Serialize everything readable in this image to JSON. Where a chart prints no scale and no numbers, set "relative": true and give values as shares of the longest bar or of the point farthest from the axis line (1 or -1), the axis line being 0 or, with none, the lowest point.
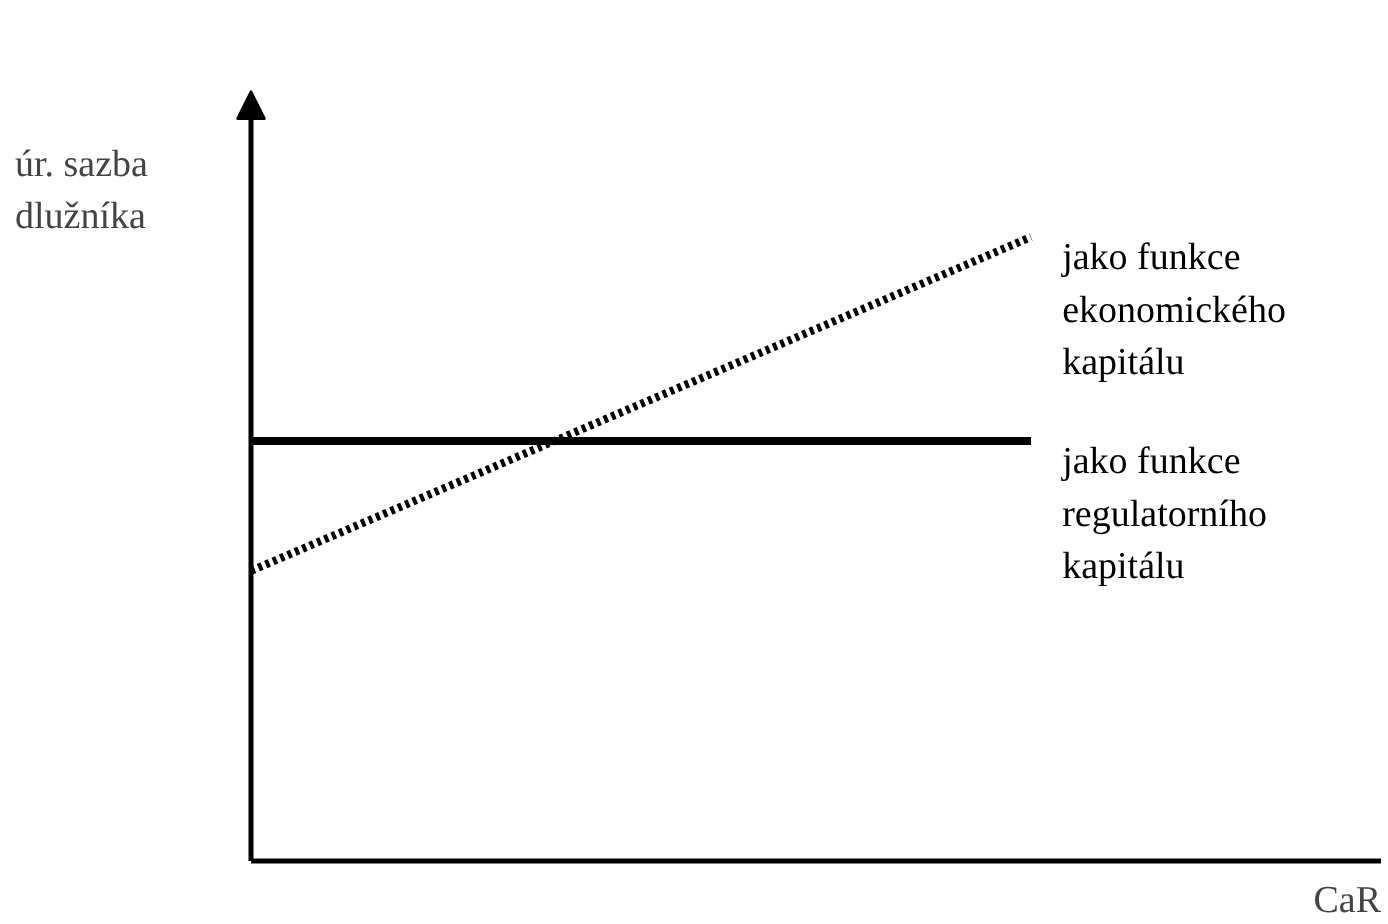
{
  "chart_data": {
    "type": "line",
    "relative": true,
    "xlabel": "CaR",
    "ylabel": "úr. sazba dlužníka",
    "categories": [
      null,
      null
    ],
    "marker": "none",
    "series": [
      {
        "name": "jako funkce ekonomického kapitálu",
        "color": "#000000",
        "values": [
          0.465,
          1
        ],
        "line_style": "dotted"
      },
      {
        "name": "jako funkce regulatorního kapitálu",
        "color": "#000000",
        "values": [
          0.673,
          0.673
        ],
        "line_style": "solid"
      }
    ]
  }
}
